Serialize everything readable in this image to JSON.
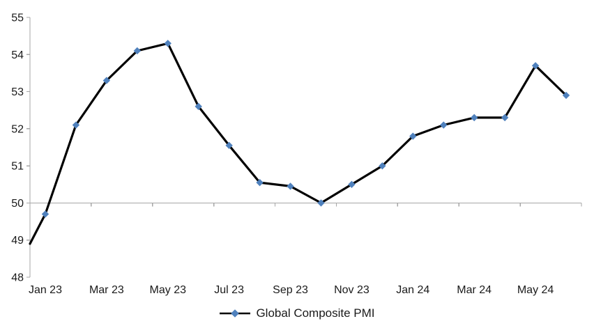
{
  "chart_data": {
    "type": "line",
    "title": "",
    "xlabel": "",
    "ylabel": "",
    "categories": [
      "Jan 23",
      "Feb 23",
      "Mar 23",
      "Apr 23",
      "May 23",
      "Jun 23",
      "Jul 23",
      "Aug 23",
      "Sep 23",
      "Oct 23",
      "Nov 23",
      "Dec 23",
      "Jan 24",
      "Feb 24",
      "Mar 24",
      "Apr 24",
      "May 24",
      "Jun 24"
    ],
    "series": [
      {
        "name": "Global Composite PMI",
        "values": [
          49.7,
          52.1,
          53.3,
          54.1,
          54.3,
          52.6,
          51.55,
          50.55,
          50.45,
          50.0,
          50.5,
          51.0,
          51.8,
          52.1,
          52.3,
          52.3,
          53.7,
          52.9
        ],
        "line_color": "#000000",
        "marker_color": "#4F81BD",
        "marker_shape": "diamond"
      }
    ],
    "edge_entry_value": 48.9,
    "visible_x_tick_labels": [
      "Jan 23",
      "Mar 23",
      "May 23",
      "Jul 23",
      "Sep 23",
      "Nov 23",
      "Jan 24",
      "Mar 24",
      "May 24"
    ],
    "x_label_interval": 2,
    "y_ticks": [
      48,
      49,
      50,
      51,
      52,
      53,
      54,
      55
    ],
    "ylim": [
      48,
      55
    ],
    "x_axis_cross_value": 50,
    "grid": "off",
    "legend": {
      "label": "Global Composite PMI",
      "position": "bottom"
    },
    "colors": {
      "axis": "#A6A6A6",
      "text": "#1A1A1A",
      "background": "#FFFFFF"
    }
  }
}
